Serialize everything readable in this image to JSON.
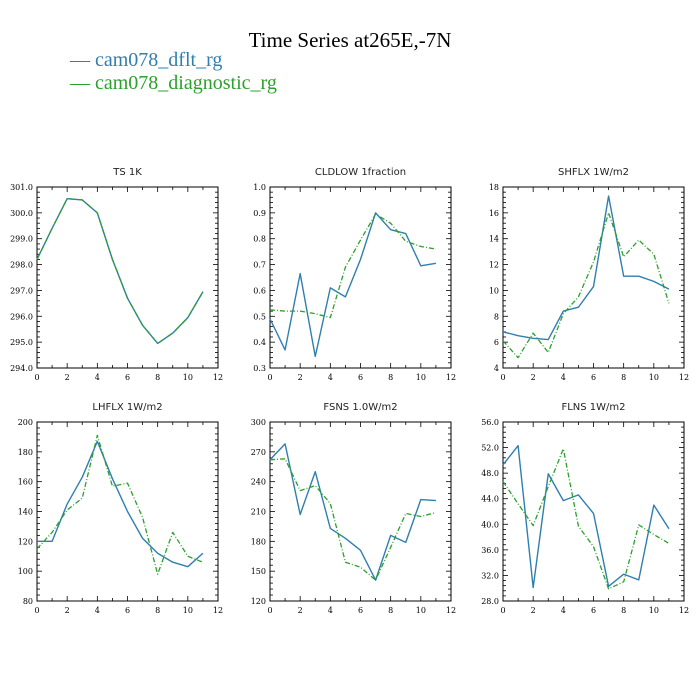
{
  "title": "Time Series at265E,-7N",
  "legend": [
    {
      "label": "cam078_dflt_rg",
      "color": "#2e7fb0",
      "dash": false
    },
    {
      "label": "cam078_diagnostic_rg",
      "color": "#2ca02c",
      "dash": true
    }
  ],
  "chart_data": [
    {
      "type": "line",
      "title": "TS  1K",
      "x": [
        0,
        1,
        2,
        3,
        4,
        5,
        6,
        7,
        8,
        9,
        10,
        11
      ],
      "xlim": [
        0,
        12
      ],
      "xticks": [
        "0",
        "2",
        "4",
        "6",
        "8",
        "10",
        "12"
      ],
      "ylim": [
        294.0,
        301.0
      ],
      "yticks": [
        "294.0",
        "295.0",
        "296.0",
        "297.0",
        "298.0",
        "299.0",
        "300.0",
        "301.0"
      ],
      "series": [
        {
          "name": "cam078_dflt_rg",
          "values": [
            298.2,
            299.4,
            300.55,
            300.5,
            300.0,
            298.2,
            296.7,
            295.65,
            294.95,
            295.35,
            295.95,
            296.95
          ]
        },
        {
          "name": "cam078_diagnostic_rg",
          "values": [
            298.2,
            299.4,
            300.55,
            300.5,
            300.0,
            298.2,
            296.7,
            295.65,
            294.95,
            295.35,
            295.95,
            296.95
          ]
        }
      ]
    },
    {
      "type": "line",
      "title": "CLDLOW  1fraction",
      "x": [
        0,
        1,
        2,
        3,
        4,
        5,
        6,
        7,
        8,
        9,
        10,
        11
      ],
      "xlim": [
        0,
        12
      ],
      "xticks": [
        "0",
        "2",
        "4",
        "6",
        "8",
        "10",
        "12"
      ],
      "ylim": [
        0.3,
        1.0
      ],
      "yticks": [
        "0.3",
        "0.4",
        "0.5",
        "0.6",
        "0.7",
        "0.8",
        "0.9",
        "1.0"
      ],
      "series": [
        {
          "name": "cam078_dflt_rg",
          "values": [
            0.49,
            0.37,
            0.665,
            0.345,
            0.61,
            0.575,
            0.72,
            0.9,
            0.835,
            0.82,
            0.695,
            0.705
          ]
        },
        {
          "name": "cam078_diagnostic_rg",
          "values": [
            0.525,
            0.52,
            0.52,
            0.51,
            0.495,
            0.69,
            0.795,
            0.895,
            0.86,
            0.79,
            0.77,
            0.76
          ]
        }
      ]
    },
    {
      "type": "line",
      "title": "SHFLX  1W/m2",
      "x": [
        0,
        1,
        2,
        3,
        4,
        5,
        6,
        7,
        8,
        9,
        10,
        11
      ],
      "xlim": [
        0,
        12
      ],
      "xticks": [
        "0",
        "2",
        "4",
        "6",
        "8",
        "10",
        "12"
      ],
      "ylim": [
        4,
        18
      ],
      "yticks": [
        "4",
        "6",
        "8",
        "10",
        "12",
        "14",
        "16",
        "18"
      ],
      "series": [
        {
          "name": "cam078_dflt_rg",
          "values": [
            6.8,
            6.5,
            6.3,
            6.2,
            8.4,
            8.7,
            10.3,
            17.3,
            11.1,
            11.1,
            10.7,
            10.1
          ]
        },
        {
          "name": "cam078_diagnostic_rg",
          "values": [
            6.1,
            4.8,
            6.7,
            5.2,
            8.2,
            9.5,
            12.2,
            16.0,
            12.6,
            13.9,
            12.8,
            9.0
          ]
        }
      ]
    },
    {
      "type": "line",
      "title": "LHFLX  1W/m2",
      "x": [
        0,
        1,
        2,
        3,
        4,
        5,
        6,
        7,
        8,
        9,
        10,
        11
      ],
      "xlim": [
        0,
        12
      ],
      "xticks": [
        "0",
        "2",
        "4",
        "6",
        "8",
        "10",
        "12"
      ],
      "ylim": [
        80,
        200
      ],
      "yticks": [
        "80",
        "100",
        "120",
        "140",
        "160",
        "180",
        "200"
      ],
      "series": [
        {
          "name": "cam078_dflt_rg",
          "values": [
            120,
            120,
            145,
            163,
            187,
            162,
            140,
            122,
            112,
            106,
            103,
            112
          ]
        },
        {
          "name": "cam078_diagnostic_rg",
          "values": [
            115,
            126,
            141,
            149,
            191,
            157,
            159,
            136,
            98,
            126,
            110,
            106
          ]
        }
      ]
    },
    {
      "type": "line",
      "title": "FSNS  1.0W/m2",
      "x": [
        0,
        1,
        2,
        3,
        4,
        5,
        6,
        7,
        8,
        9,
        10,
        11
      ],
      "xlim": [
        0,
        12
      ],
      "xticks": [
        "0",
        "2",
        "4",
        "6",
        "8",
        "10",
        "12"
      ],
      "ylim": [
        120,
        300
      ],
      "yticks": [
        "120",
        "150",
        "180",
        "210",
        "240",
        "270",
        "300"
      ],
      "series": [
        {
          "name": "cam078_dflt_rg",
          "values": [
            262,
            278,
            207,
            250,
            193,
            183,
            171,
            141,
            186,
            179,
            222,
            221
          ]
        },
        {
          "name": "cam078_diagnostic_rg",
          "values": [
            262,
            263,
            231,
            236,
            218,
            159,
            154,
            141,
            174,
            208,
            205,
            209
          ]
        }
      ]
    },
    {
      "type": "line",
      "title": "FLNS  1W/m2",
      "x": [
        0,
        1,
        2,
        3,
        4,
        5,
        6,
        7,
        8,
        9,
        10,
        11
      ],
      "xlim": [
        0,
        12
      ],
      "xticks": [
        "0",
        "2",
        "4",
        "6",
        "8",
        "10",
        "12"
      ],
      "ylim": [
        28.0,
        56.0
      ],
      "yticks": [
        "28.0",
        "32.0",
        "36.0",
        "40.0",
        "44.0",
        "48.0",
        "52.0",
        "56.0"
      ],
      "series": [
        {
          "name": "cam078_dflt_rg",
          "values": [
            49.3,
            52.3,
            30.1,
            47.9,
            43.7,
            44.6,
            41.7,
            30.3,
            32.2,
            31.3,
            43.0,
            39.3
          ]
        },
        {
          "name": "cam078_diagnostic_rg",
          "values": [
            46.7,
            43.2,
            39.8,
            45.9,
            51.8,
            39.7,
            36.5,
            29.9,
            31.0,
            39.9,
            38.4,
            37.0
          ]
        }
      ]
    }
  ]
}
